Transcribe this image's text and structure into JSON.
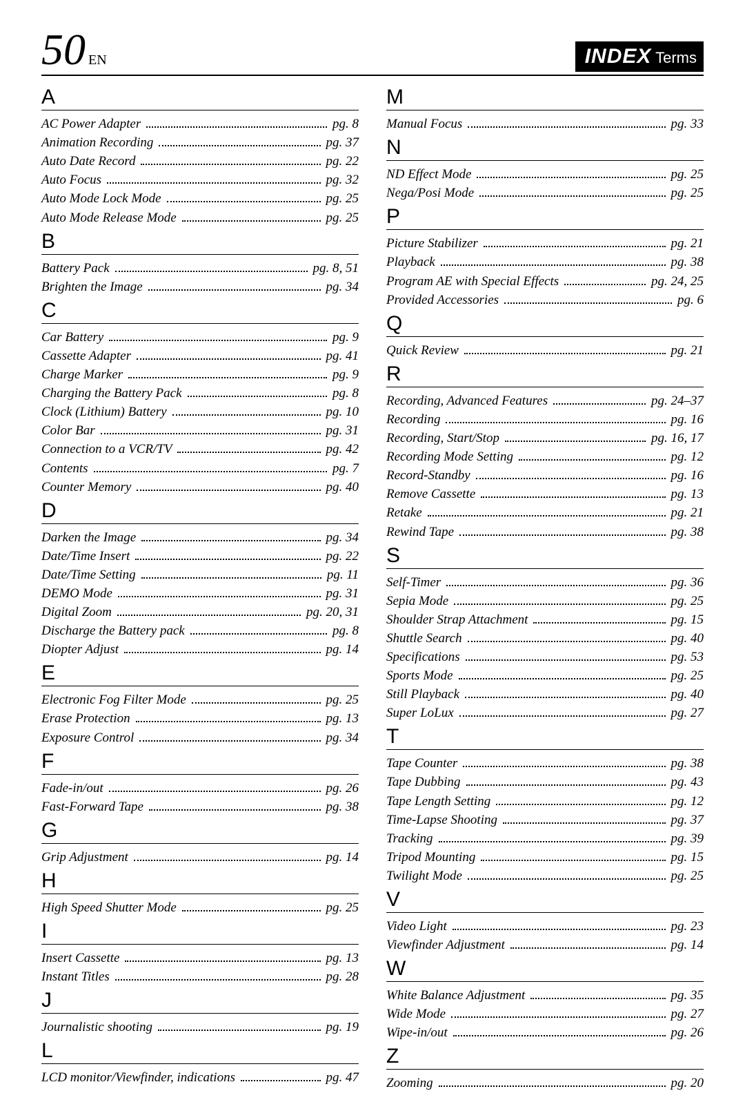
{
  "header": {
    "page_number": "50",
    "lang": "EN",
    "title_main": "INDEX",
    "title_sub": " Terms"
  },
  "columns": [
    [
      {
        "letter": "A"
      },
      {
        "label": "AC Power Adapter",
        "pg": "pg. 8"
      },
      {
        "label": "Animation Recording",
        "pg": "pg. 37"
      },
      {
        "label": "Auto Date Record",
        "pg": "pg. 22"
      },
      {
        "label": "Auto Focus",
        "pg": "pg. 32"
      },
      {
        "label": "Auto Mode Lock Mode",
        "pg": "pg. 25"
      },
      {
        "label": "Auto Mode Release Mode",
        "pg": "pg. 25"
      },
      {
        "letter": "B"
      },
      {
        "label": "Battery Pack",
        "pg": "pg. 8, 51"
      },
      {
        "label": "Brighten the Image",
        "pg": "pg. 34"
      },
      {
        "letter": "C"
      },
      {
        "label": "Car Battery",
        "pg": "pg. 9"
      },
      {
        "label": "Cassette Adapter",
        "pg": "pg. 41"
      },
      {
        "label": "Charge Marker",
        "pg": "pg. 9"
      },
      {
        "label": "Charging the Battery Pack",
        "pg": "pg. 8"
      },
      {
        "label": "Clock (Lithium) Battery",
        "pg": "pg. 10"
      },
      {
        "label": "Color Bar",
        "pg": "pg. 31"
      },
      {
        "label": "Connection to a VCR/TV",
        "pg": "pg. 42"
      },
      {
        "label": "Contents",
        "pg": "pg. 7"
      },
      {
        "label": "Counter Memory",
        "pg": "pg. 40"
      },
      {
        "letter": "D"
      },
      {
        "label": "Darken the Image",
        "pg": "pg. 34"
      },
      {
        "label": "Date/Time Insert",
        "pg": "pg. 22"
      },
      {
        "label": "Date/Time Setting",
        "pg": "pg. 11"
      },
      {
        "label": "DEMO Mode",
        "pg": "pg. 31"
      },
      {
        "label": "Digital Zoom",
        "pg": "pg. 20, 31"
      },
      {
        "label": "Discharge the Battery pack",
        "pg": "pg. 8"
      },
      {
        "label": "Diopter Adjust",
        "pg": "pg. 14"
      },
      {
        "letter": "E"
      },
      {
        "label": "Electronic Fog Filter Mode",
        "pg": "pg. 25"
      },
      {
        "label": "Erase Protection",
        "pg": "pg. 13"
      },
      {
        "label": "Exposure Control",
        "pg": "pg. 34"
      },
      {
        "letter": "F"
      },
      {
        "label": "Fade-in/out",
        "pg": "pg. 26"
      },
      {
        "label": "Fast-Forward Tape",
        "pg": "pg. 38"
      },
      {
        "letter": "G"
      },
      {
        "label": "Grip Adjustment",
        "pg": "pg. 14"
      },
      {
        "letter": "H"
      },
      {
        "label": "High Speed Shutter Mode",
        "pg": "pg. 25"
      },
      {
        "letter": "I"
      },
      {
        "label": "Insert Cassette",
        "pg": "pg. 13"
      },
      {
        "label": "Instant Titles",
        "pg": "pg. 28"
      },
      {
        "letter": "J"
      },
      {
        "label": "Journalistic shooting",
        "pg": "pg. 19"
      },
      {
        "letter": "L"
      },
      {
        "label": "LCD monitor/Viewfinder, indications",
        "pg": "pg. 47"
      }
    ],
    [
      {
        "letter": "M"
      },
      {
        "label": "Manual Focus",
        "pg": "pg. 33"
      },
      {
        "letter": "N"
      },
      {
        "label": "ND Effect Mode",
        "pg": "pg. 25"
      },
      {
        "label": "Nega/Posi Mode",
        "pg": "pg. 25"
      },
      {
        "letter": "P"
      },
      {
        "label": "Picture Stabilizer",
        "pg": "pg. 21"
      },
      {
        "label": "Playback",
        "pg": "pg. 38"
      },
      {
        "label": "Program AE with Special Effects",
        "pg": "pg. 24, 25"
      },
      {
        "label": "Provided Accessories",
        "pg": "pg. 6"
      },
      {
        "letter": "Q"
      },
      {
        "label": "Quick Review",
        "pg": "pg. 21"
      },
      {
        "letter": "R"
      },
      {
        "label": "Recording, Advanced Features",
        "pg": "pg. 24–37"
      },
      {
        "label": "Recording",
        "pg": "pg. 16"
      },
      {
        "label": "Recording, Start/Stop",
        "pg": "pg. 16, 17"
      },
      {
        "label": "Recording Mode Setting",
        "pg": "pg. 12"
      },
      {
        "label": "Record-Standby",
        "pg": "pg. 16"
      },
      {
        "label": "Remove Cassette",
        "pg": "pg. 13"
      },
      {
        "label": "Retake",
        "pg": "pg. 21"
      },
      {
        "label": "Rewind Tape",
        "pg": "pg. 38"
      },
      {
        "letter": "S"
      },
      {
        "label": "Self-Timer",
        "pg": "pg. 36"
      },
      {
        "label": "Sepia Mode",
        "pg": "pg. 25"
      },
      {
        "label": "Shoulder Strap Attachment",
        "pg": "pg. 15"
      },
      {
        "label": "Shuttle Search",
        "pg": "pg. 40"
      },
      {
        "label": "Specifications",
        "pg": "pg. 53"
      },
      {
        "label": "Sports Mode",
        "pg": "pg. 25"
      },
      {
        "label": "Still Playback",
        "pg": "pg. 40"
      },
      {
        "label": "Super LoLux",
        "pg": "pg. 27"
      },
      {
        "letter": "T"
      },
      {
        "label": "Tape Counter",
        "pg": "pg. 38"
      },
      {
        "label": "Tape Dubbing",
        "pg": "pg. 43"
      },
      {
        "label": "Tape Length Setting",
        "pg": "pg. 12"
      },
      {
        "label": "Time-Lapse Shooting",
        "pg": "pg. 37"
      },
      {
        "label": "Tracking",
        "pg": "pg. 39"
      },
      {
        "label": "Tripod Mounting",
        "pg": "pg. 15"
      },
      {
        "label": "Twilight Mode",
        "pg": "pg. 25"
      },
      {
        "letter": "V"
      },
      {
        "label": "Video Light",
        "pg": "pg. 23"
      },
      {
        "label": "Viewfinder Adjustment",
        "pg": "pg. 14"
      },
      {
        "letter": "W"
      },
      {
        "label": "White Balance Adjustment",
        "pg": "pg. 35"
      },
      {
        "label": "Wide Mode",
        "pg": "pg. 27"
      },
      {
        "label": "Wipe-in/out",
        "pg": "pg. 26"
      },
      {
        "letter": "Z"
      },
      {
        "label": "Zooming",
        "pg": "pg. 20"
      }
    ]
  ]
}
